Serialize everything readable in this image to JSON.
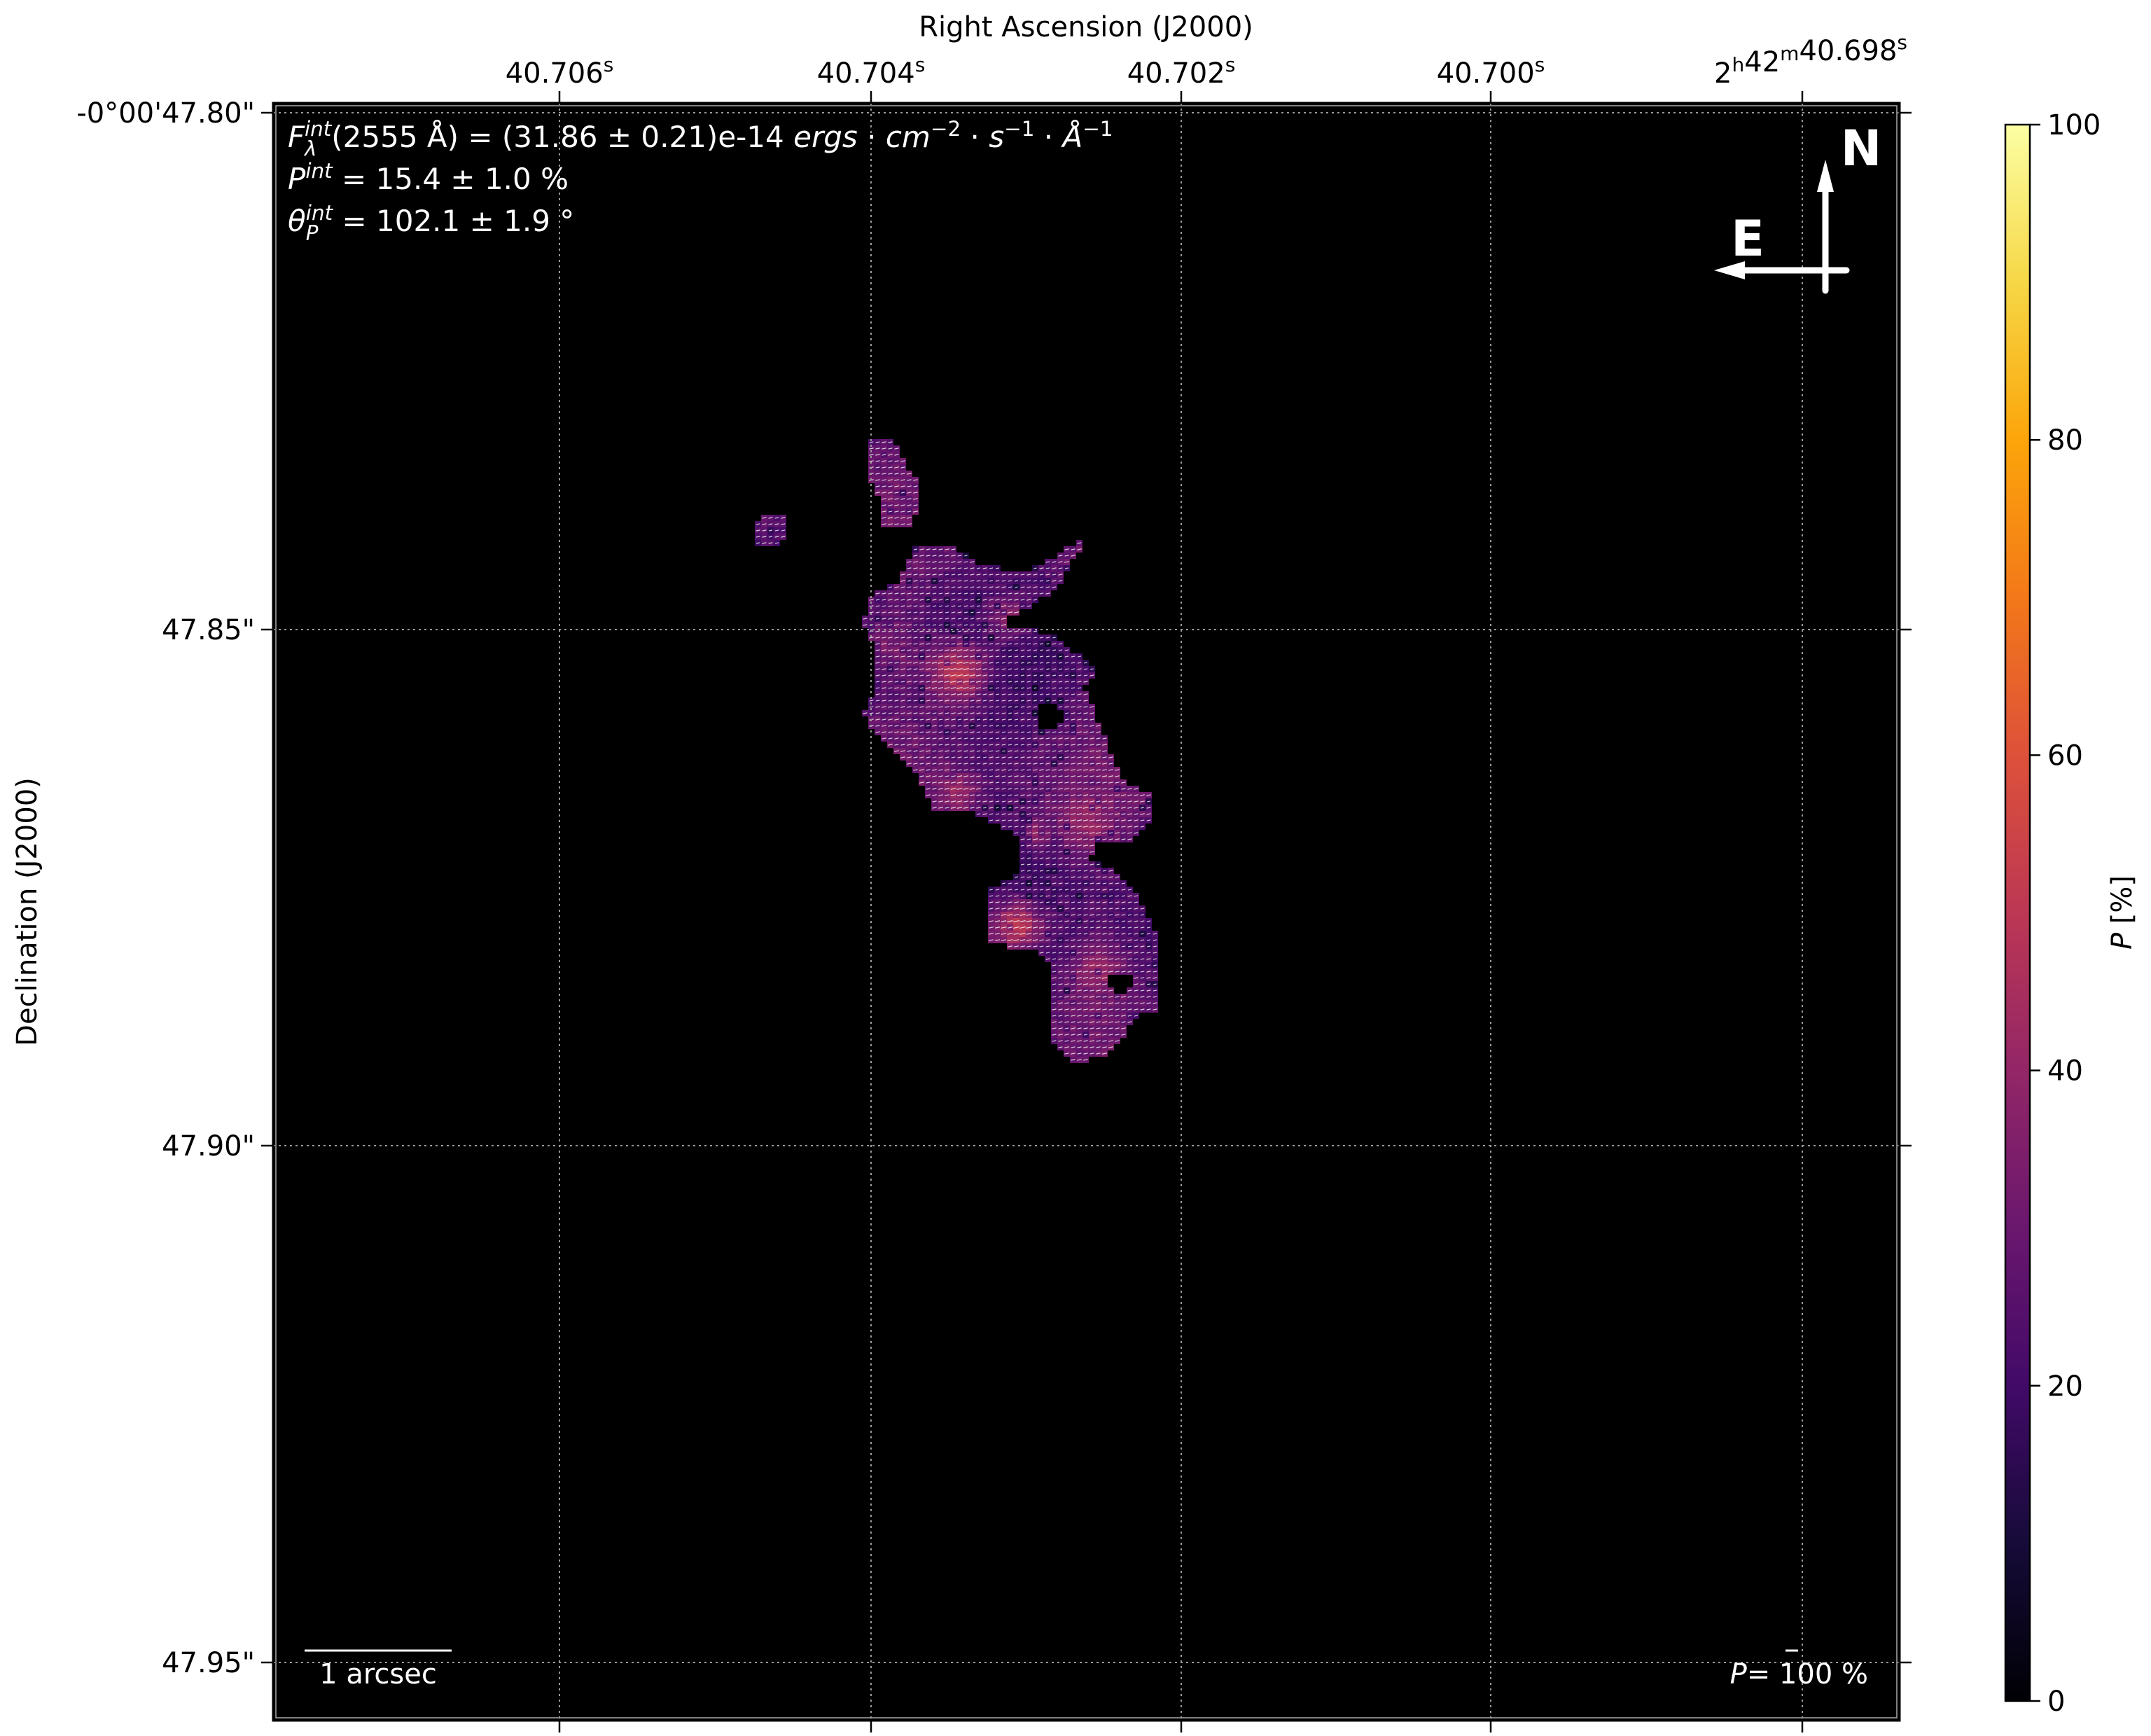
{
  "chart_data": {
    "type": "heatmap",
    "subtype": "polarization map with polarization vectors",
    "xlabel": "Right Ascension (J2000)",
    "ylabel": "Declination (J2000)",
    "x_ticks": [
      [
        [
          "40.706",
          "s"
        ]
      ],
      [
        [
          "40.704",
          "s"
        ]
      ],
      [
        [
          "40.702",
          "s"
        ]
      ],
      [
        [
          "40.700",
          "s"
        ]
      ],
      [
        [
          "2",
          "h"
        ],
        [
          "42",
          "m"
        ],
        [
          "40.698",
          "s"
        ]
      ]
    ],
    "y_ticks": [
      "-0°00'47.80\"",
      "47.85\"",
      "47.90\"",
      "47.95\""
    ],
    "grid": true,
    "background_color": "#000000",
    "colormap": "inferno",
    "colorbar": {
      "label": "P [%]",
      "range": [
        0,
        100
      ],
      "ticks": [
        "0",
        "20",
        "40",
        "60",
        "80",
        "100"
      ]
    },
    "map_value_range_percent": [
      10,
      60
    ],
    "vector_angle_deg": 102,
    "annotations": {
      "flux": [
        [
          "F",
          "i"
        ],
        [
          "λ",
          "sub"
        ],
        [
          "int",
          "sup"
        ],
        [
          "(2555 Å) = (31.86 ± 0.21)e-14 ",
          "n"
        ],
        [
          "ergs",
          "i"
        ],
        [
          " · ",
          "n"
        ],
        [
          "cm",
          "i"
        ],
        [
          "−2",
          "sup"
        ],
        [
          " · ",
          "n"
        ],
        [
          "s",
          "i"
        ],
        [
          "−1",
          "sup"
        ],
        [
          " · ",
          "n"
        ],
        [
          "Å",
          "i"
        ],
        [
          "−1",
          "sup"
        ]
      ],
      "pol_degree": [
        [
          "P",
          "i"
        ],
        [
          "int",
          "sup"
        ],
        [
          " = 15.4 ± 1.0 %",
          "n"
        ]
      ],
      "pol_angle": [
        [
          "θ",
          "i"
        ],
        [
          "P",
          "sub"
        ],
        [
          "int",
          "sup"
        ],
        [
          " = 102.1 ± 1.9 °",
          "n"
        ]
      ]
    },
    "compass": {
      "north": "N",
      "east": "E"
    },
    "scale_bar_label": "1 arcsec",
    "vector_legend": [
      [
        "P",
        "i"
      ],
      [
        "= 100 %",
        "n"
      ]
    ]
  }
}
